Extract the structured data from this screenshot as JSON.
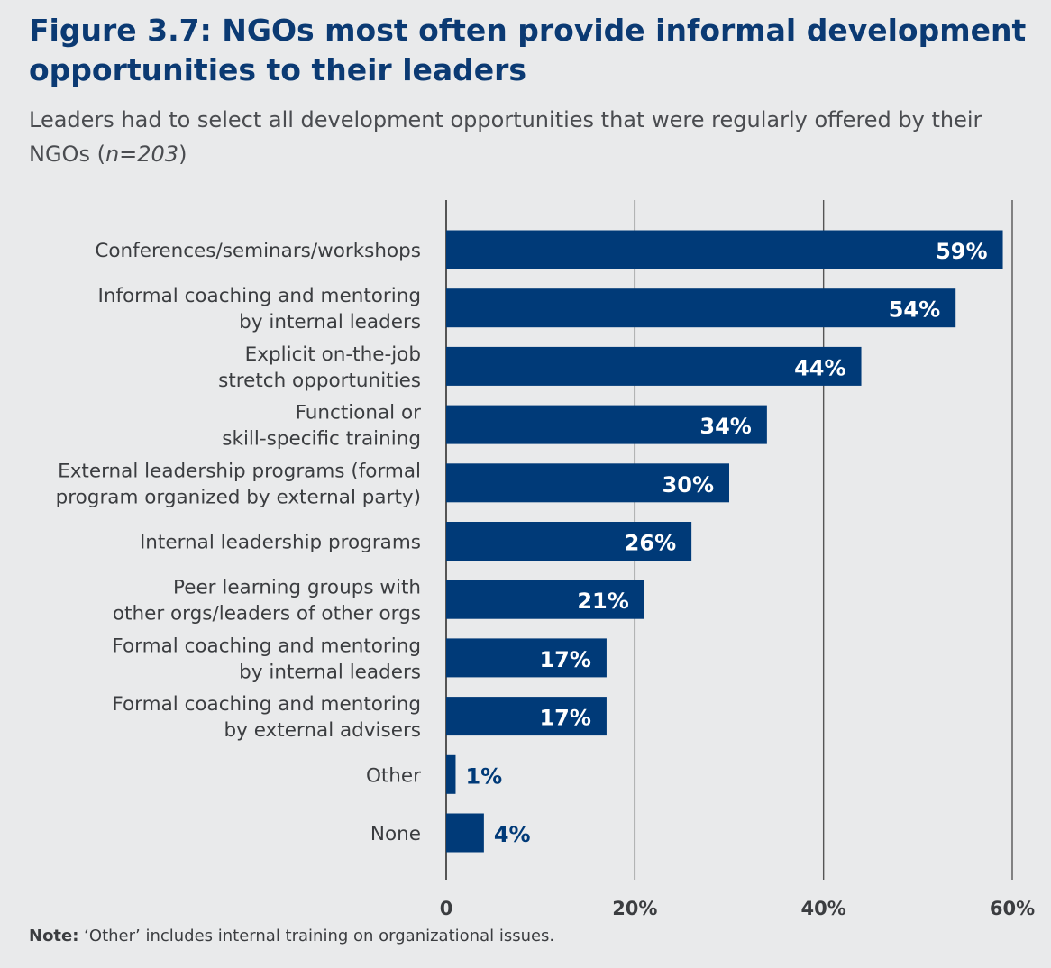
{
  "title": "Figure 3.7: NGOs most often provide informal development opportunities to their leaders",
  "subtitle": {
    "text_before": "Leaders had to select all development opportunities that were regularly offered by their NGOs (",
    "emphasis": "n=203",
    "text_after": ")"
  },
  "note": {
    "label": "Note:",
    "text": " ‘Other’ includes internal training on organizational issues."
  },
  "colors": {
    "bar": "#003a78",
    "axis": "#555555",
    "label_text": "#3b3d40",
    "value_inside": "#ffffff",
    "value_outside": "#003a78",
    "background": "#e9eaeb"
  },
  "chart_data": {
    "type": "bar",
    "orientation": "horizontal",
    "categories": [
      [
        "Conferences/seminars/workshops"
      ],
      [
        "Informal coaching and mentoring",
        "by internal leaders"
      ],
      [
        "Explicit on-the-job",
        "stretch opportunities"
      ],
      [
        "Functional or",
        "skill-specific training"
      ],
      [
        "External leadership programs (formal",
        "program organized by external party)"
      ],
      [
        "Internal leadership programs"
      ],
      [
        "Peer learning groups with",
        "other orgs/leaders of other orgs"
      ],
      [
        "Formal coaching and mentoring",
        "by internal leaders"
      ],
      [
        "Formal coaching and mentoring",
        "by external advisers"
      ],
      [
        "Other"
      ],
      [
        "None"
      ]
    ],
    "values": [
      59,
      54,
      44,
      34,
      30,
      26,
      21,
      17,
      17,
      1,
      4
    ],
    "value_labels": [
      "59%",
      "54%",
      "44%",
      "34%",
      "30%",
      "26%",
      "21%",
      "17%",
      "17%",
      "1%",
      "4%"
    ],
    "xlim": [
      0,
      60
    ],
    "xticks": [
      0,
      20,
      40,
      60
    ],
    "xtick_labels": [
      "0",
      "20%",
      "40%",
      "60%"
    ],
    "grid": true
  }
}
